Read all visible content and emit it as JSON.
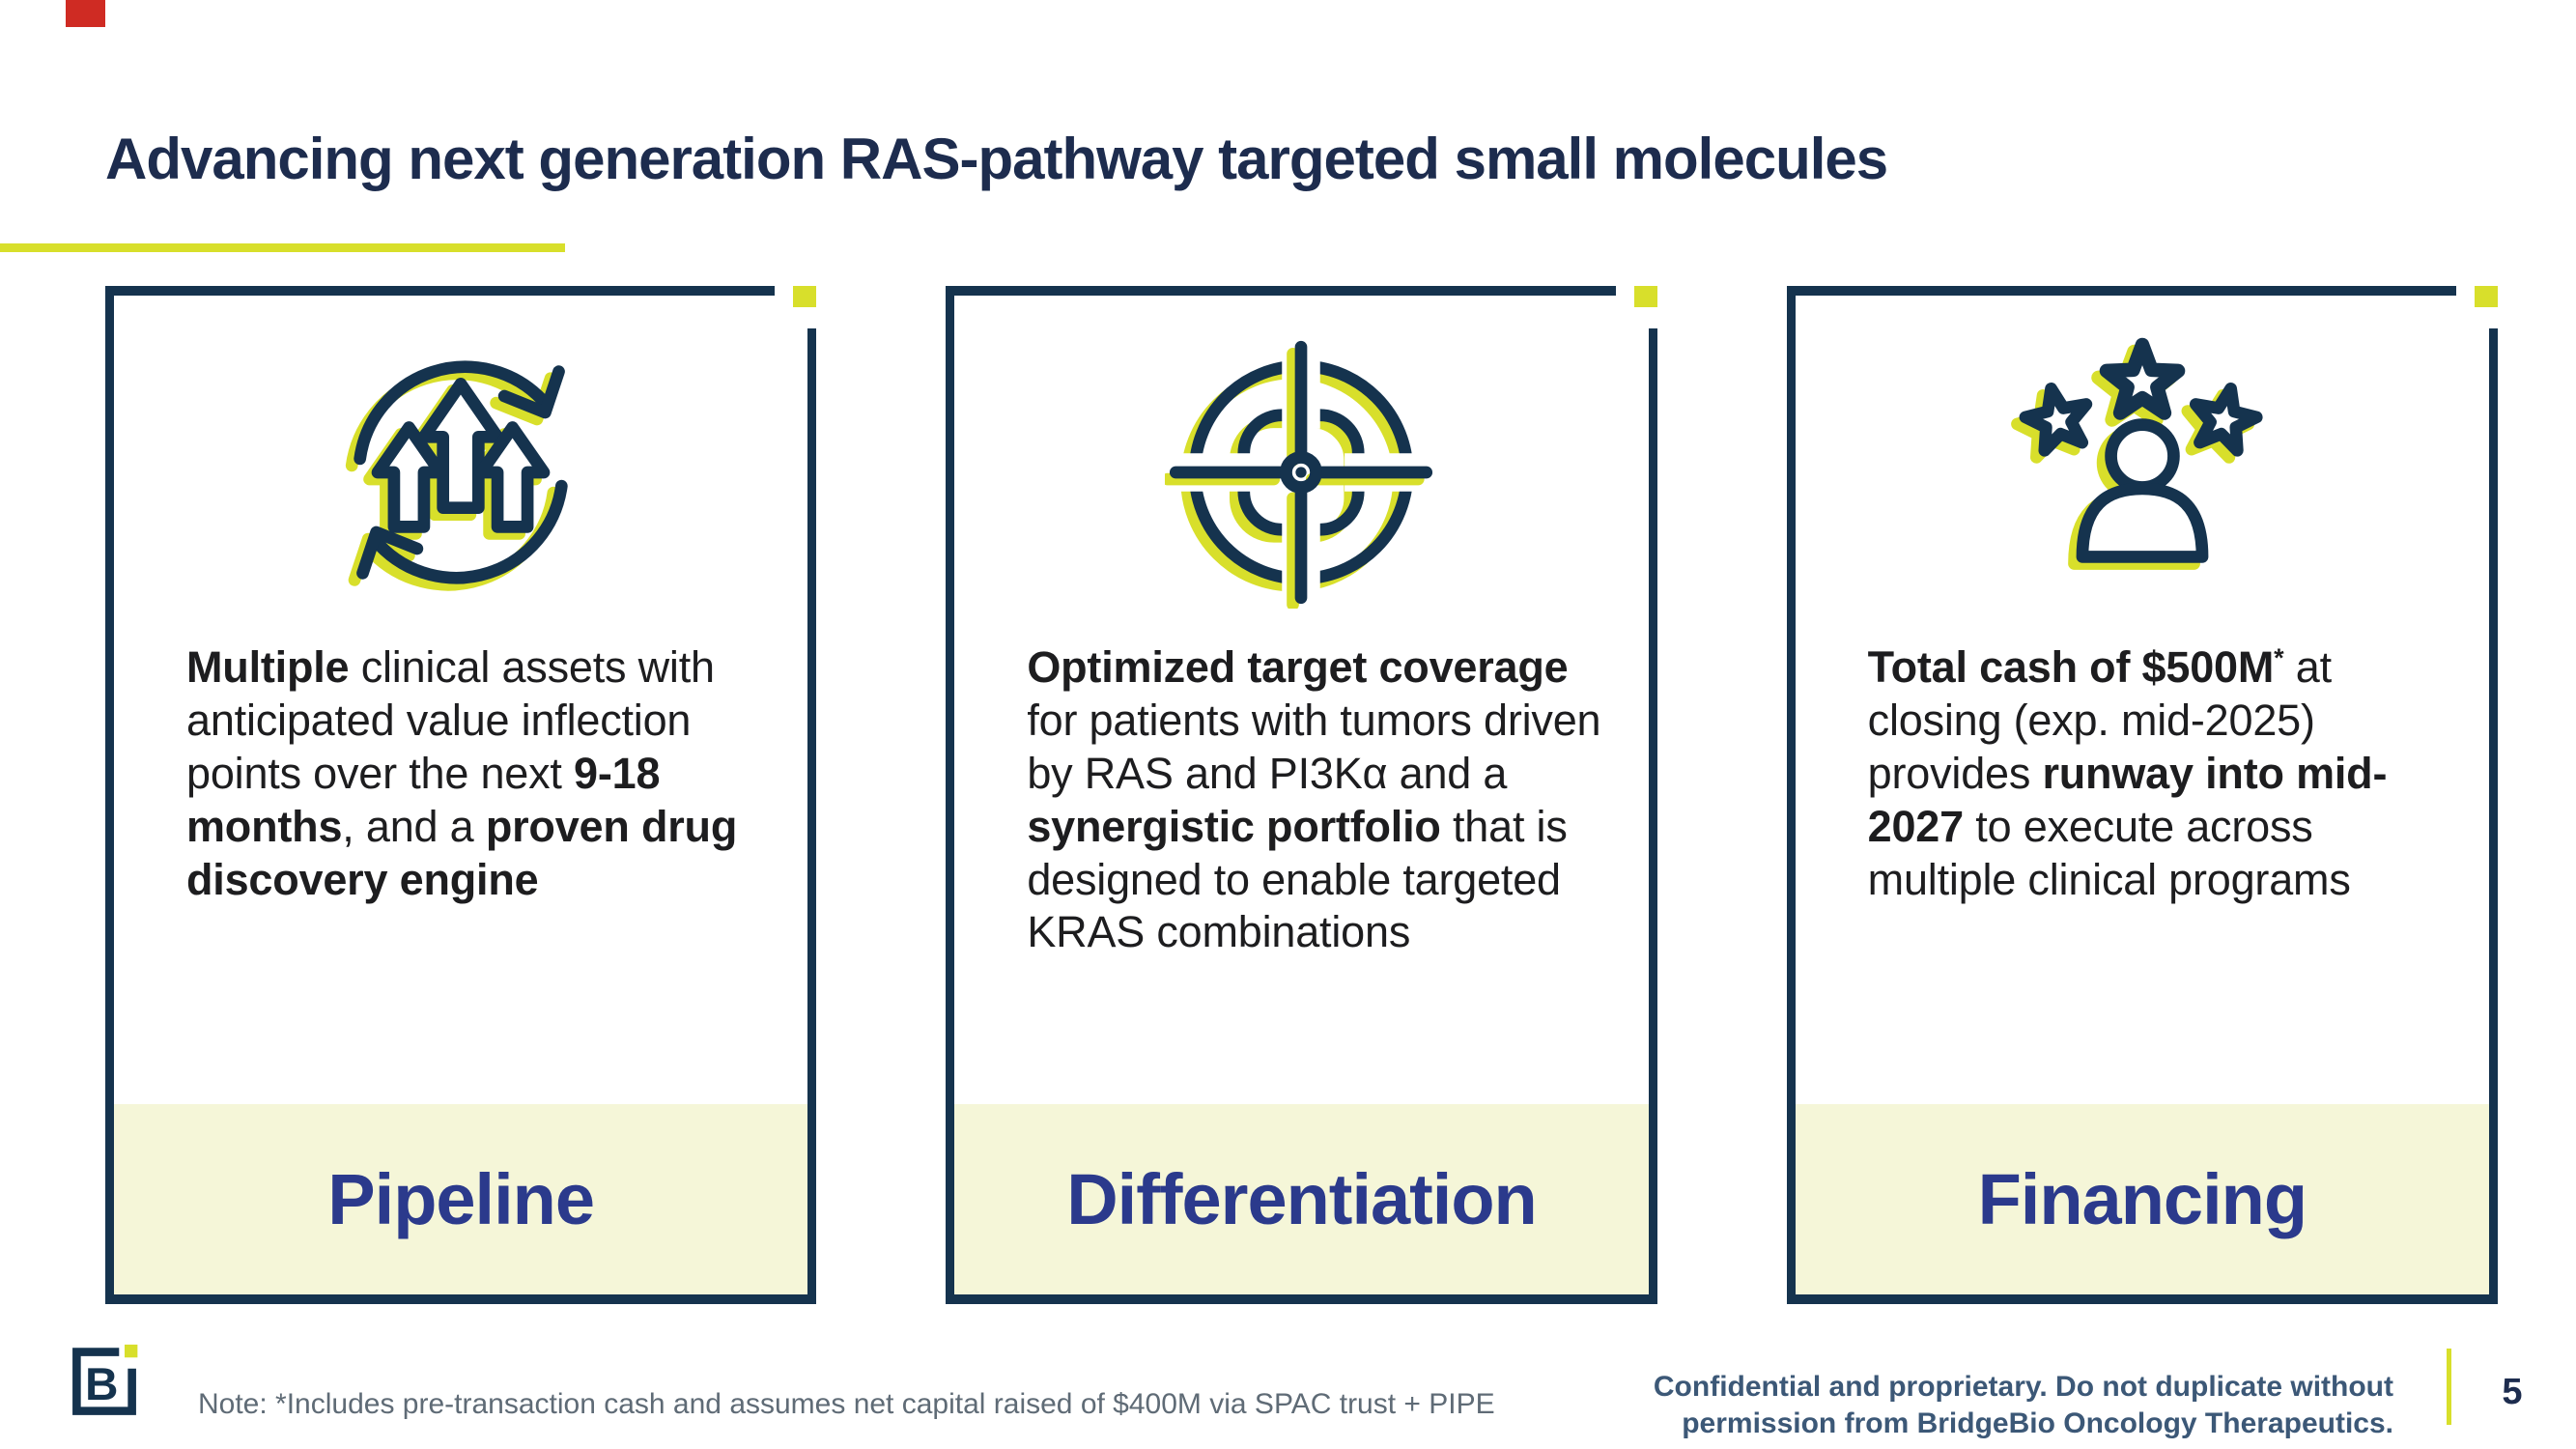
{
  "slide": {
    "title": "Advancing next generation RAS-pathway targeted small molecules"
  },
  "colors": {
    "navy": "#15334e",
    "title_navy": "#1d2c4e",
    "yellow": "#d8df2b",
    "pale": "#f5f6d8",
    "label_blue": "#2b3a8c",
    "body_text": "#1d1d1f",
    "note_gray": "#5f6b76",
    "conf_blue": "#3c5877",
    "red": "#cf2b23"
  },
  "cards": [
    {
      "icon": "cycle-growth-icon",
      "label": "Pipeline",
      "segments": [
        {
          "text": "Multiple",
          "bold": true
        },
        {
          "text": " clinical assets with anticipated value inflection points over the next ",
          "bold": false
        },
        {
          "text": "9-18 months",
          "bold": true
        },
        {
          "text": ", and a ",
          "bold": false
        },
        {
          "text": "proven drug discovery engine",
          "bold": true
        }
      ]
    },
    {
      "icon": "target-icon",
      "label": "Differentiation",
      "segments": [
        {
          "text": "Optimized target coverage",
          "bold": true
        },
        {
          "text": " for patients with tumors driven by RAS and PI3Kα and a ",
          "bold": false
        },
        {
          "text": "synergistic portfolio",
          "bold": true
        },
        {
          "text": " that is designed to enable targeted KRAS combinations",
          "bold": false
        }
      ]
    },
    {
      "icon": "person-stars-icon",
      "label": "Financing",
      "segments": [
        {
          "text": "Total cash of $500M",
          "bold": true
        },
        {
          "text": "*",
          "bold": true,
          "sup": true
        },
        {
          "text": " at closing (exp. mid-2025) provides ",
          "bold": false
        },
        {
          "text": "runway into mid-2027",
          "bold": true
        },
        {
          "text": " to execute across multiple clinical programs",
          "bold": false
        }
      ]
    }
  ],
  "footer": {
    "note": "Note: *Includes pre-transaction cash and assumes net capital raised of $400M via SPAC trust + PIPE",
    "confidential_line1": "Confidential and proprietary. Do not duplicate without",
    "confidential_line2": "permission from BridgeBio Oncology Therapeutics.",
    "logo_letter": "B",
    "page_number": "5"
  }
}
